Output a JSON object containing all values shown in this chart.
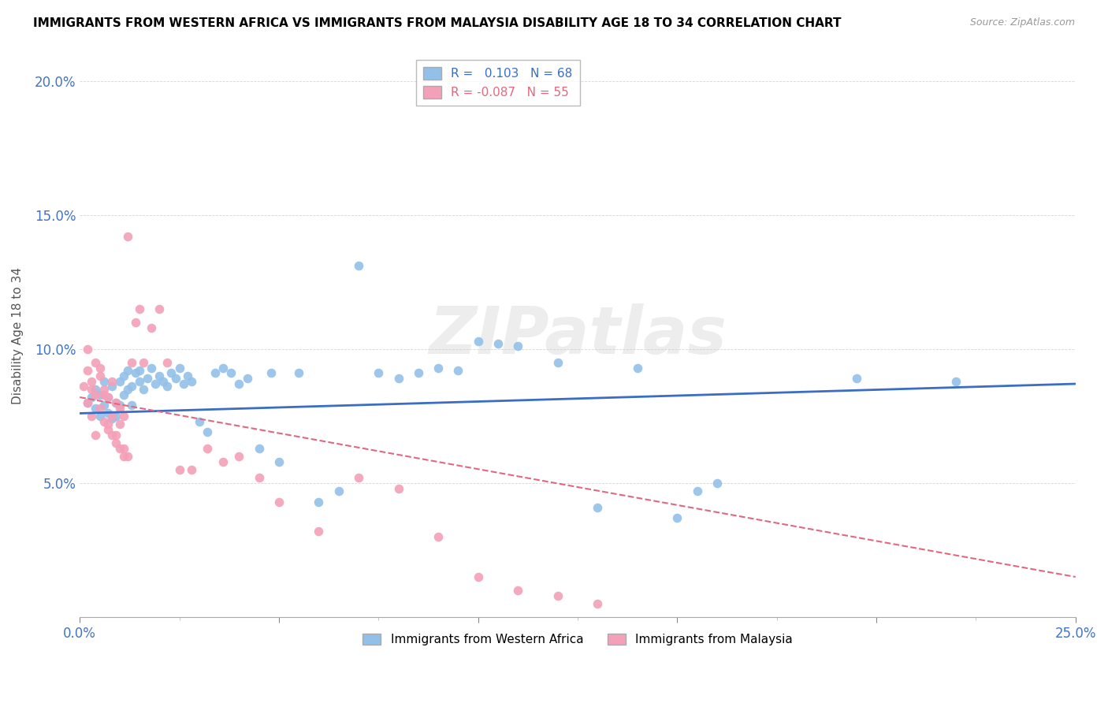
{
  "title": "IMMIGRANTS FROM WESTERN AFRICA VS IMMIGRANTS FROM MALAYSIA DISABILITY AGE 18 TO 34 CORRELATION CHART",
  "source": "Source: ZipAtlas.com",
  "ylabel": "Disability Age 18 to 34",
  "xlim": [
    0.0,
    0.25
  ],
  "ylim": [
    0.0,
    0.21
  ],
  "blue_R": 0.103,
  "blue_N": 68,
  "pink_R": -0.087,
  "pink_N": 55,
  "blue_color": "#92C0E8",
  "pink_color": "#F4A0B8",
  "blue_line_color": "#3B6DC4",
  "pink_line_color": "#E06880",
  "watermark": "ZIPatlas",
  "blue_scatter_x": [
    0.002,
    0.003,
    0.004,
    0.004,
    0.005,
    0.005,
    0.006,
    0.006,
    0.007,
    0.007,
    0.008,
    0.008,
    0.009,
    0.009,
    0.01,
    0.01,
    0.011,
    0.011,
    0.012,
    0.012,
    0.013,
    0.013,
    0.014,
    0.015,
    0.015,
    0.016,
    0.017,
    0.018,
    0.019,
    0.02,
    0.021,
    0.022,
    0.023,
    0.024,
    0.025,
    0.026,
    0.027,
    0.028,
    0.03,
    0.032,
    0.034,
    0.036,
    0.038,
    0.04,
    0.042,
    0.045,
    0.048,
    0.05,
    0.055,
    0.06,
    0.065,
    0.07,
    0.075,
    0.08,
    0.085,
    0.09,
    0.095,
    0.1,
    0.105,
    0.11,
    0.12,
    0.13,
    0.14,
    0.15,
    0.155,
    0.16,
    0.195,
    0.22
  ],
  "blue_scatter_y": [
    0.08,
    0.082,
    0.078,
    0.085,
    0.075,
    0.083,
    0.079,
    0.088,
    0.076,
    0.082,
    0.074,
    0.086,
    0.08,
    0.075,
    0.088,
    0.079,
    0.083,
    0.09,
    0.085,
    0.092,
    0.079,
    0.086,
    0.091,
    0.088,
    0.092,
    0.085,
    0.089,
    0.093,
    0.087,
    0.09,
    0.088,
    0.086,
    0.091,
    0.089,
    0.093,
    0.087,
    0.09,
    0.088,
    0.073,
    0.069,
    0.091,
    0.093,
    0.091,
    0.087,
    0.089,
    0.063,
    0.091,
    0.058,
    0.091,
    0.043,
    0.047,
    0.131,
    0.091,
    0.089,
    0.091,
    0.093,
    0.092,
    0.103,
    0.102,
    0.101,
    0.095,
    0.041,
    0.093,
    0.037,
    0.047,
    0.05,
    0.089,
    0.088
  ],
  "pink_scatter_x": [
    0.001,
    0.002,
    0.002,
    0.003,
    0.003,
    0.004,
    0.004,
    0.005,
    0.005,
    0.006,
    0.006,
    0.007,
    0.007,
    0.008,
    0.008,
    0.009,
    0.009,
    0.01,
    0.01,
    0.011,
    0.011,
    0.012,
    0.013,
    0.014,
    0.015,
    0.016,
    0.018,
    0.02,
    0.022,
    0.025,
    0.028,
    0.032,
    0.036,
    0.04,
    0.045,
    0.05,
    0.06,
    0.07,
    0.08,
    0.09,
    0.1,
    0.11,
    0.12,
    0.13,
    0.002,
    0.003,
    0.004,
    0.005,
    0.006,
    0.007,
    0.008,
    0.009,
    0.01,
    0.011,
    0.012
  ],
  "pink_scatter_y": [
    0.086,
    0.08,
    0.092,
    0.075,
    0.088,
    0.083,
    0.095,
    0.078,
    0.09,
    0.073,
    0.085,
    0.07,
    0.082,
    0.068,
    0.088,
    0.065,
    0.08,
    0.063,
    0.078,
    0.06,
    0.075,
    0.142,
    0.095,
    0.11,
    0.115,
    0.095,
    0.108,
    0.115,
    0.095,
    0.055,
    0.055,
    0.063,
    0.058,
    0.06,
    0.052,
    0.043,
    0.032,
    0.052,
    0.048,
    0.03,
    0.015,
    0.01,
    0.008,
    0.005,
    0.1,
    0.085,
    0.068,
    0.093,
    0.083,
    0.072,
    0.075,
    0.068,
    0.072,
    0.063,
    0.06
  ]
}
